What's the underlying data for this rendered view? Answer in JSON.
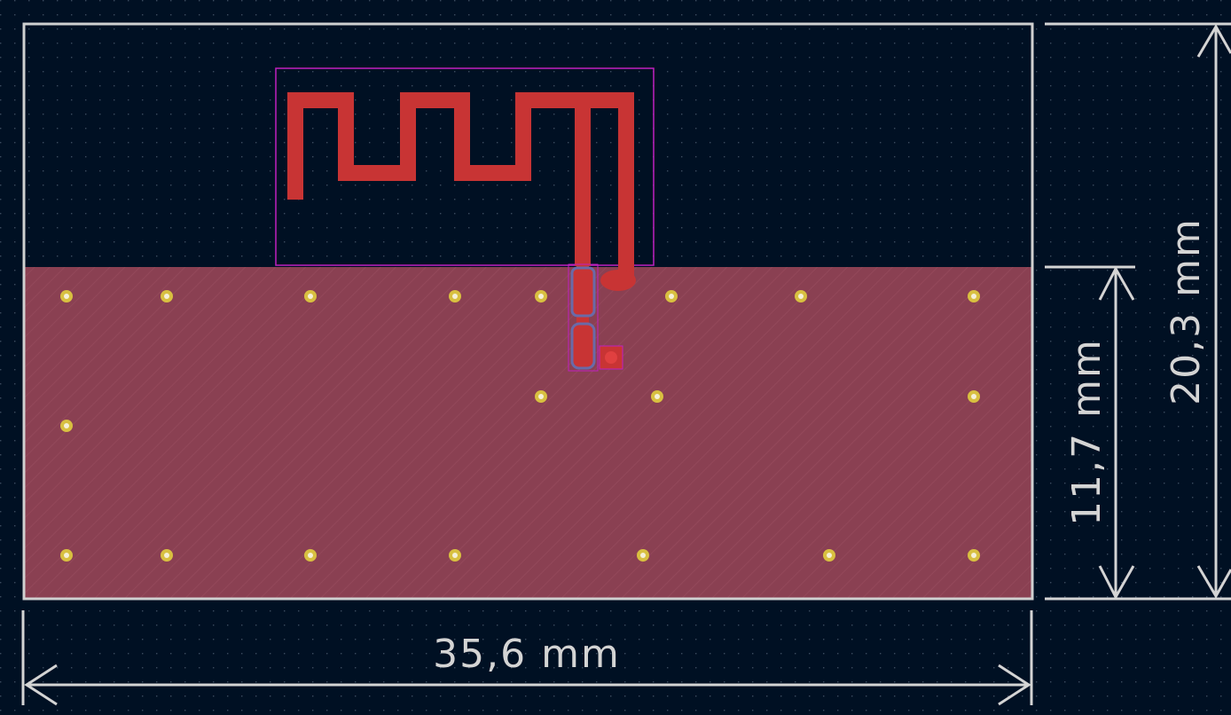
{
  "colors": {
    "background": "#001023",
    "grid_dot": "#3a4a5e",
    "board_outline": "#d0d0d0",
    "ground_plane": "#8a4052",
    "copper": "#c83434",
    "vias": "#d8c040",
    "via_hole": "#f5f0d8",
    "courtyard": "#c020c0",
    "pad_outline": "#6a6aa8",
    "dimension": "#d4d4d4"
  },
  "dimensions": {
    "width_label": "35,6 mm",
    "height_total_label": "20,3 mm",
    "height_ground_label": "11,7 mm"
  },
  "icons": {
    "antenna": "meander-trace-antenna-icon",
    "via": "via-icon",
    "pad": "smd-pad-icon"
  }
}
